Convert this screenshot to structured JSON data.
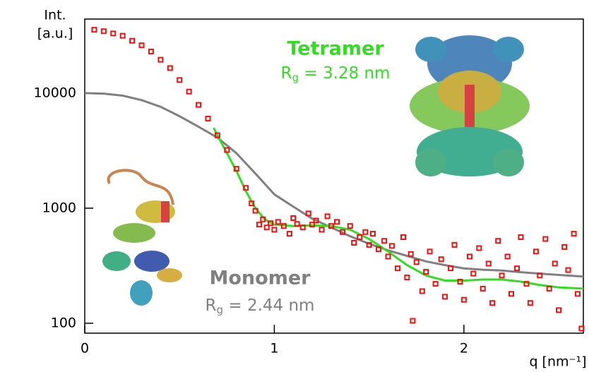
{
  "chart_data": {
    "type": "line",
    "y_label": [
      "Int.",
      "[a.u.]"
    ],
    "x_label": "q [nm⁻¹]",
    "ylog": true,
    "xlim": [
      0,
      2.63
    ],
    "ylim": [
      82,
      44000
    ],
    "xticks": [
      0,
      1,
      2
    ],
    "yticks": [
      100,
      1000,
      10000
    ],
    "series": [
      {
        "name": "Monomer",
        "type": "line",
        "color": "#808080",
        "x": [
          0,
          0.1,
          0.2,
          0.3,
          0.4,
          0.5,
          0.6,
          0.7,
          0.8,
          0.9,
          1.0,
          1.1,
          1.2,
          1.3,
          1.4,
          1.5,
          1.6,
          1.7,
          1.8,
          1.9,
          2.0,
          2.1,
          2.2,
          2.3,
          2.4,
          2.5,
          2.63
        ],
        "values": [
          10000,
          9900,
          9500,
          8700,
          7600,
          6300,
          5100,
          4100,
          3000,
          2000,
          1320,
          1030,
          810,
          680,
          570,
          490,
          430,
          385,
          345,
          320,
          300,
          292,
          287,
          278,
          270,
          263,
          255
        ]
      },
      {
        "name": "Tetramer",
        "type": "line",
        "color": "#33dd22",
        "x": [
          0.68,
          0.7,
          0.8,
          0.85,
          0.9,
          0.95,
          1.0,
          1.1,
          1.2,
          1.3,
          1.4,
          1.5,
          1.6,
          1.7,
          1.8,
          1.9,
          2.0,
          2.1,
          2.2,
          2.3,
          2.4,
          2.5,
          2.63
        ],
        "values": [
          5000,
          4300,
          2100,
          1400,
          1000,
          800,
          720,
          700,
          710,
          700,
          650,
          540,
          420,
          320,
          260,
          235,
          235,
          240,
          240,
          230,
          215,
          205,
          200
        ]
      },
      {
        "type": "scatter",
        "color": "#ee1111",
        "x": [
          0.05,
          0.1,
          0.15,
          0.2,
          0.25,
          0.3,
          0.35,
          0.4,
          0.45,
          0.5,
          0.55,
          0.6,
          0.65,
          0.7,
          0.75,
          0.8,
          0.85,
          0.88,
          0.9,
          0.92,
          0.94,
          0.96,
          0.98,
          1.0,
          1.02,
          1.05,
          1.08,
          1.1,
          1.12,
          1.15,
          1.18,
          1.2,
          1.22,
          1.25,
          1.28,
          1.3,
          1.33,
          1.36,
          1.4,
          1.42,
          1.45,
          1.48,
          1.5,
          1.52,
          1.55,
          1.58,
          1.6,
          1.62,
          1.65,
          1.68,
          1.7,
          1.72,
          1.73,
          1.75,
          1.78,
          1.8,
          1.82,
          1.85,
          1.88,
          1.9,
          1.93,
          1.95,
          1.98,
          2.0,
          2.03,
          2.05,
          2.08,
          2.1,
          2.13,
          2.15,
          2.18,
          2.2,
          2.23,
          2.25,
          2.28,
          2.3,
          2.33,
          2.35,
          2.38,
          2.4,
          2.43,
          2.45,
          2.48,
          2.5,
          2.53,
          2.55,
          2.58,
          2.6,
          2.62
        ],
        "values": [
          35500,
          34500,
          33000,
          31500,
          28500,
          26000,
          23000,
          19500,
          16500,
          13000,
          10300,
          7900,
          6000,
          4300,
          3200,
          2200,
          1500,
          1100,
          950,
          720,
          800,
          680,
          740,
          650,
          760,
          700,
          600,
          820,
          730,
          680,
          900,
          720,
          780,
          650,
          850,
          700,
          760,
          620,
          700,
          500,
          560,
          620,
          480,
          600,
          440,
          520,
          380,
          470,
          300,
          560,
          250,
          400,
          105,
          340,
          190,
          280,
          420,
          220,
          360,
          170,
          300,
          480,
          230,
          160,
          380,
          270,
          450,
          200,
          330,
          150,
          520,
          260,
          380,
          180,
          300,
          560,
          220,
          150,
          420,
          260,
          540,
          200,
          330,
          130,
          460,
          290,
          600,
          180,
          90
        ]
      }
    ],
    "annotations": [
      {
        "series": 1,
        "symbol": "R",
        "subscript": "g",
        "text": "= 3.28 nm"
      },
      {
        "series": 0,
        "symbol": "R",
        "subscript": "g",
        "text": "= 2.44 nm"
      }
    ]
  }
}
